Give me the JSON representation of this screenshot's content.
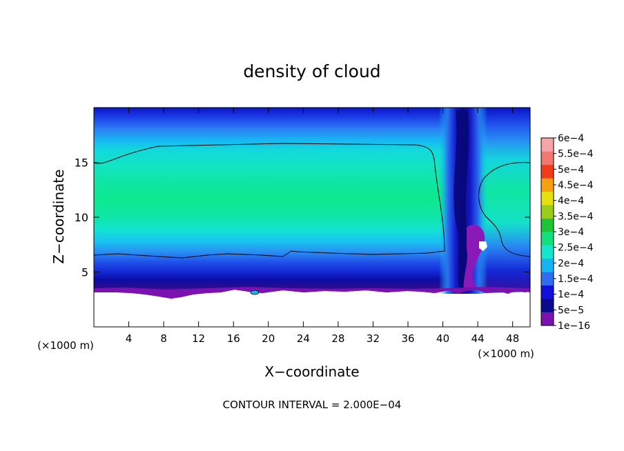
{
  "chart_data": {
    "type": "heatmap",
    "title": "density of cloud",
    "xlabel": "X−coordinate",
    "ylabel": "Z−coordinate",
    "x_unit_left": "(×1000 m)",
    "x_unit_right": "(×1000 m)",
    "footer": "CONTOUR INTERVAL = 2.000E−04",
    "xlim": [
      0,
      50
    ],
    "ylim": [
      0,
      20
    ],
    "x_ticks": [
      4,
      8,
      12,
      16,
      20,
      24,
      28,
      32,
      36,
      40,
      44,
      48
    ],
    "x_tick_labels": [
      "4",
      "8",
      "12",
      "16",
      "20",
      "24",
      "28",
      "32",
      "36",
      "40",
      "44",
      "48"
    ],
    "y_ticks": [
      5,
      10,
      15
    ],
    "y_tick_labels": [
      "5",
      "10",
      "15"
    ],
    "colorbar": {
      "levels": [
        "1e−16",
        "5e−5",
        "1e−4",
        "1.5e−4",
        "2e−4",
        "2.5e−4",
        "3e−4",
        "3.5e−4",
        "4e−4",
        "4.5e−4",
        "5e−4",
        "5.5e−4",
        "6e−4"
      ],
      "colors": [
        "#7a12b0",
        "#0a0a8c",
        "#1010d8",
        "#2f6cf0",
        "#16b4f2",
        "#14e6cc",
        "#12e07c",
        "#1cc436",
        "#9acc1a",
        "#e6e010",
        "#f4a010",
        "#f03c1a",
        "#f0786e",
        "#f4a6a6"
      ]
    },
    "cloud_layer": {
      "contour_level": 0.0002,
      "band_z_bottom_km": 6.5,
      "band_z_top_km": 16.6,
      "base_z_km": 3.2,
      "peak_density": 0.00026,
      "clear_column_x_km": [
        40,
        44
      ]
    }
  }
}
